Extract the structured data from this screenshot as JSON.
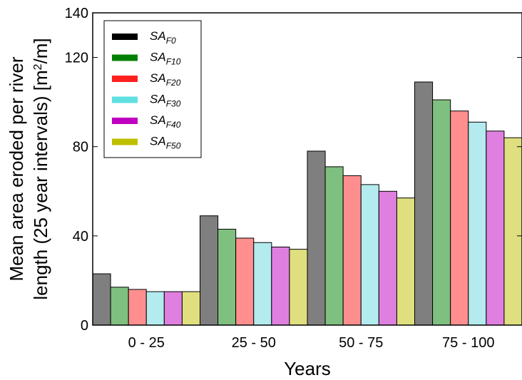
{
  "chart_data": {
    "type": "bar",
    "title": "",
    "xlabel": "Years",
    "ylabel_line1": "Mean area eroded per river",
    "ylabel_line2_prefix": "length (25 year intervals) [m",
    "ylabel_line2_sup": "2",
    "ylabel_line2_suffix": "/m]",
    "ylim": [
      0,
      140
    ],
    "yticks": [
      0,
      40,
      80,
      120,
      140
    ],
    "categories": [
      "0 - 25",
      "25 - 50",
      "50 - 75",
      "75 - 100"
    ],
    "legend_position": "top-left",
    "series": [
      {
        "base": "SA",
        "sub": "F0",
        "legend_color": "#000000",
        "bar_color": "#7f7f7f",
        "values": [
          23,
          49,
          78,
          109
        ]
      },
      {
        "base": "SA",
        "sub": "F10",
        "legend_color": "#008000",
        "bar_color": "#7fbf7f",
        "values": [
          17,
          43,
          71,
          101
        ]
      },
      {
        "base": "SA",
        "sub": "F20",
        "legend_color": "#ff2020",
        "bar_color": "#ff8f8f",
        "values": [
          16,
          39,
          67,
          96
        ]
      },
      {
        "base": "SA",
        "sub": "F30",
        "legend_color": "#60e0e0",
        "bar_color": "#b3ebee",
        "values": [
          15,
          37,
          63,
          91
        ]
      },
      {
        "base": "SA",
        "sub": "F40",
        "legend_color": "#c000c0",
        "bar_color": "#df7fdf",
        "values": [
          15,
          35,
          60,
          87
        ]
      },
      {
        "base": "SA",
        "sub": "F50",
        "legend_color": "#bfbf00",
        "bar_color": "#dfdf7f",
        "values": [
          15,
          34,
          57,
          84
        ]
      }
    ]
  }
}
